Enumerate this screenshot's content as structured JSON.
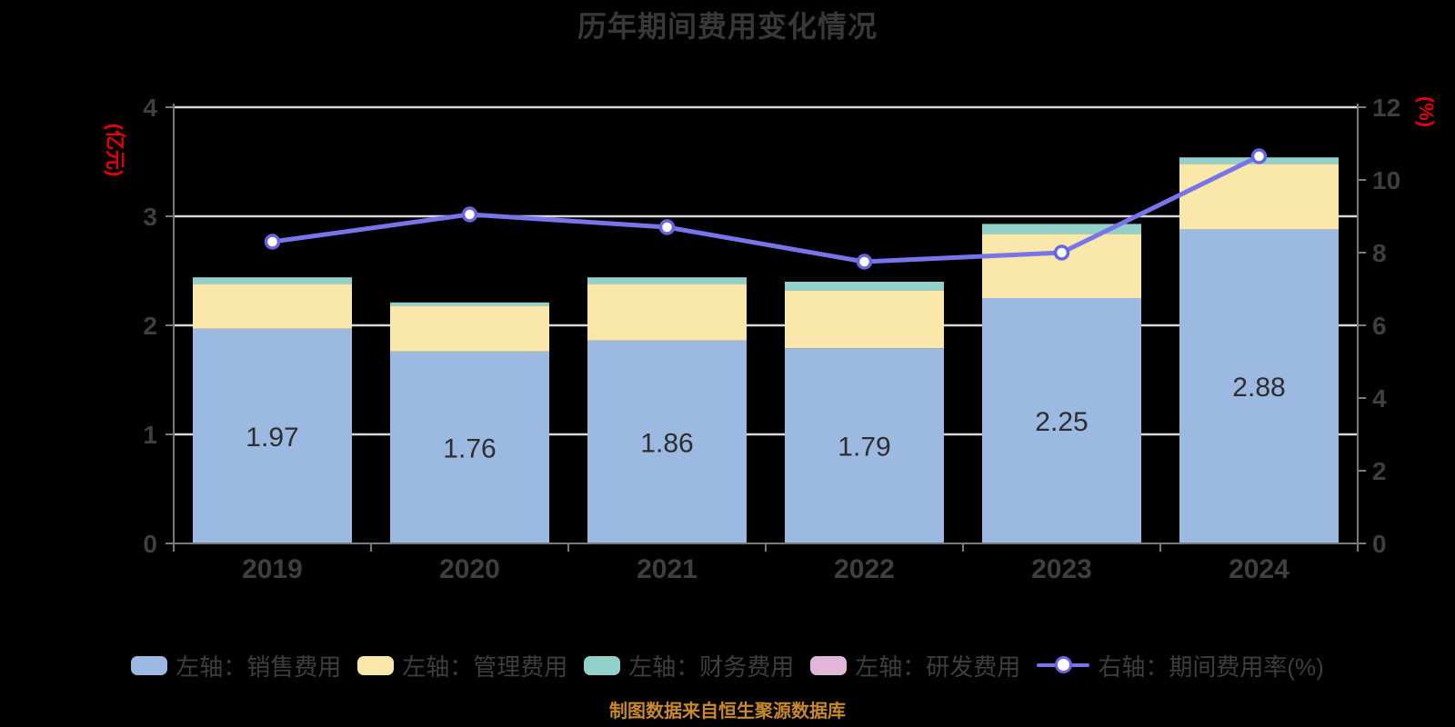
{
  "title": "历年期间费用变化情况",
  "source_note": "制图数据来自恒生聚源数据库",
  "colors": {
    "background": "#000000",
    "title_text": "#383838",
    "axis_line": "#7A7A7A",
    "tick_text": "#3F3F3F",
    "grid_line": "#D8D8D8",
    "axis_unit_text": "#E60000",
    "bar_label_text": "#2E2E2E",
    "source_text": "#C8882C",
    "legend_text": "#3E3E3E"
  },
  "chart_data": {
    "type": "bar",
    "title": "历年期间费用变化情况",
    "categories": [
      "2019",
      "2020",
      "2021",
      "2022",
      "2023",
      "2024"
    ],
    "left_axis": {
      "label": "(亿元)",
      "min": 0,
      "max": 4,
      "ticks": [
        0,
        1,
        2,
        3,
        4
      ]
    },
    "right_axis": {
      "label": "(%)",
      "min": 0,
      "max": 12,
      "ticks": [
        0,
        2,
        4,
        6,
        8,
        10,
        12
      ]
    },
    "grid": true,
    "legend_position": "bottom",
    "bar_series": [
      {
        "name": "左轴：销售费用",
        "color": "#9CB9E2",
        "values": [
          1.97,
          1.76,
          1.86,
          1.79,
          2.25,
          2.88
        ],
        "labels": [
          "1.97",
          "1.76",
          "1.86",
          "1.79",
          "2.25",
          "2.88"
        ]
      },
      {
        "name": "左轴：管理费用",
        "color": "#F9E8AA",
        "values": [
          0.41,
          0.42,
          0.52,
          0.53,
          0.59,
          0.6
        ]
      },
      {
        "name": "左轴：财务费用",
        "color": "#92D1C9",
        "values": [
          0.06,
          0.03,
          0.06,
          0.08,
          0.09,
          0.06
        ]
      },
      {
        "name": "左轴：研发费用",
        "color": "#E2B5DA",
        "values": [
          0,
          0,
          0,
          0,
          0,
          0
        ]
      }
    ],
    "line_series": {
      "name": "右轴：期间费用率(%)",
      "color": "#7874EA",
      "marker_ring": "#6965E2",
      "values": [
        8.3,
        9.05,
        8.7,
        7.75,
        8.0,
        10.65
      ]
    }
  }
}
